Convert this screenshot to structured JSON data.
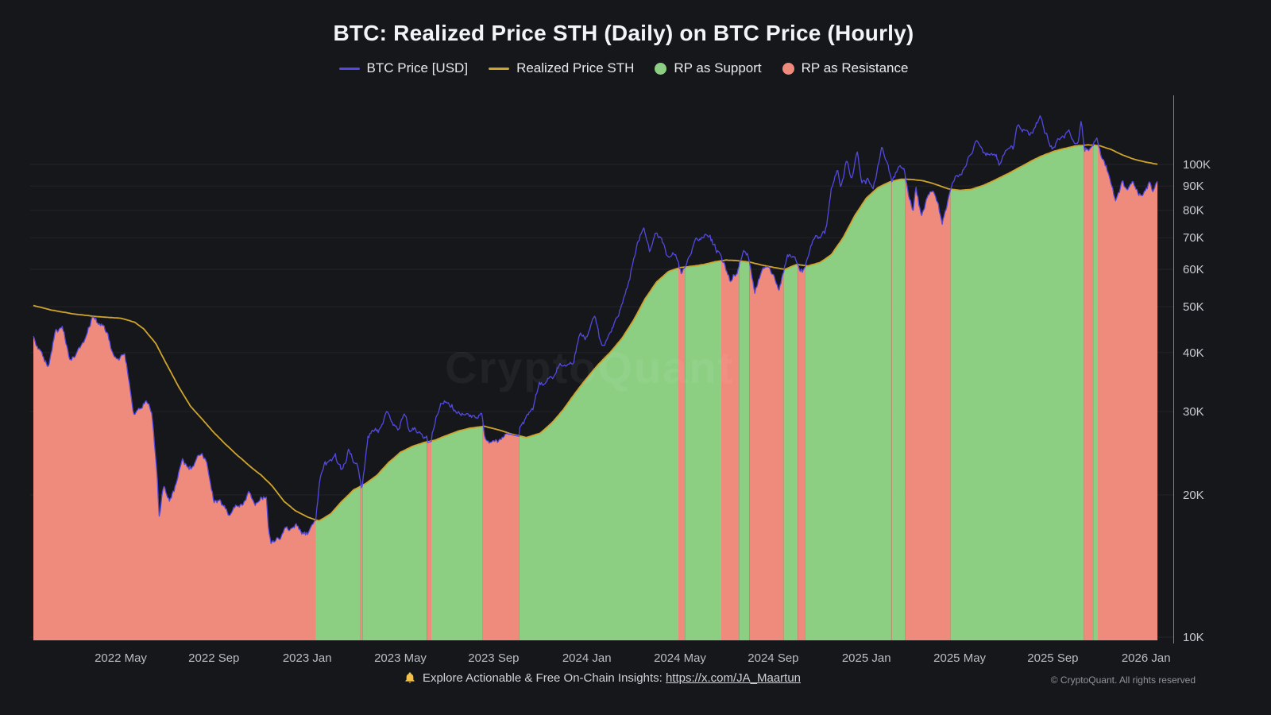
{
  "title": "BTC: Realized Price STH (Daily) on BTC Price (Hourly)",
  "legend": [
    {
      "label": "BTC Price [USD]",
      "swatch": "line",
      "color": "#5349e0"
    },
    {
      "label": "Realized Price STH",
      "swatch": "line",
      "color": "#cfa42d"
    },
    {
      "label": "RP as Support",
      "swatch": "dot",
      "color": "#8ccf83"
    },
    {
      "label": "RP as Resistance",
      "swatch": "dot",
      "color": "#ef8b7c"
    }
  ],
  "watermark": "CryptoQuant",
  "footer": {
    "icon": "bell-icon",
    "text": "Explore Actionable & Free On-Chain Insights:",
    "link_text": "https://x.com/JA_Maartun",
    "copyright": "© CryptoQuant. All rights reserved"
  },
  "chart_data": {
    "type": "area",
    "title": "BTC: Realized Price STH (Daily) on BTC Price (Hourly)",
    "x_axis": {
      "epoch": "months since 2022-01-01",
      "tick_months": [
        4,
        8,
        12,
        16,
        20,
        24,
        28,
        32,
        36,
        40,
        44,
        48
      ],
      "tick_labels": [
        "2022 May",
        "2022 Sep",
        "2023 Jan",
        "2023 May",
        "2023 Sep",
        "2024 Jan",
        "2024 May",
        "2024 Sep",
        "2025 Jan",
        "2025 May",
        "2025 Sep",
        "2026 Jan"
      ]
    },
    "y_axis": {
      "scale": "log",
      "unit": "thousand USD",
      "tick_values": [
        10,
        20,
        30,
        40,
        50,
        60,
        70,
        80,
        90,
        100
      ],
      "tick_labels": [
        "10K",
        "20K",
        "30K",
        "40K",
        "50K",
        "60K",
        "70K",
        "80K",
        "90K",
        "100K"
      ]
    },
    "colors": {
      "support": "#8ccf83",
      "resistance": "#ef8b7c",
      "grid": "rgba(255,255,255,0.06)",
      "axis": "#7d828b"
    },
    "bands_rule": "green (RP as Support) where BTC price is above Realized Price STH; red (RP as Resistance) where BTC price is below Realized Price STH; band fills from chart floor up to the lower of the two series",
    "series": [
      {
        "name": "BTC Price [USD]",
        "color": "#5349e0",
        "points": [
          [
            0.25,
            43.5
          ],
          [
            0.6,
            39.2
          ],
          [
            0.9,
            36.9
          ],
          [
            1.2,
            43.3
          ],
          [
            1.5,
            44.1
          ],
          [
            1.8,
            38.6
          ],
          [
            2.1,
            39.4
          ],
          [
            2.4,
            42.6
          ],
          [
            2.75,
            47.6
          ],
          [
            3.0,
            46.8
          ],
          [
            3.3,
            45.4
          ],
          [
            3.6,
            40.1
          ],
          [
            3.9,
            38.6
          ],
          [
            4.15,
            39.6
          ],
          [
            4.35,
            35.2
          ],
          [
            4.55,
            29.3
          ],
          [
            4.8,
            29.9
          ],
          [
            5.1,
            31.6
          ],
          [
            5.35,
            29.6
          ],
          [
            5.55,
            22.6
          ],
          [
            5.65,
            18.0
          ],
          [
            5.85,
            20.6
          ],
          [
            6.1,
            19.2
          ],
          [
            6.4,
            21.2
          ],
          [
            6.65,
            23.3
          ],
          [
            6.9,
            22.5
          ],
          [
            7.2,
            23.1
          ],
          [
            7.45,
            24.4
          ],
          [
            7.7,
            23.8
          ],
          [
            8.0,
            20.1
          ],
          [
            8.3,
            19.9
          ],
          [
            8.6,
            18.8
          ],
          [
            8.9,
            19.3
          ],
          [
            9.2,
            19.6
          ],
          [
            9.5,
            20.3
          ],
          [
            9.8,
            19.5
          ],
          [
            10.05,
            20.6
          ],
          [
            10.25,
            20.9
          ],
          [
            10.35,
            17.3
          ],
          [
            10.45,
            16.0
          ],
          [
            10.65,
            16.6
          ],
          [
            10.85,
            16.3
          ],
          [
            11.1,
            17.1
          ],
          [
            11.35,
            16.9
          ],
          [
            11.6,
            16.8
          ],
          [
            11.85,
            16.6
          ],
          [
            12.1,
            16.8
          ],
          [
            12.35,
            17.2
          ],
          [
            12.55,
            21.0
          ],
          [
            12.75,
            22.8
          ],
          [
            12.95,
            23.1
          ],
          [
            13.2,
            23.7
          ],
          [
            13.5,
            21.9
          ],
          [
            13.75,
            24.6
          ],
          [
            14.0,
            23.3
          ],
          [
            14.2,
            22.4
          ],
          [
            14.35,
            20.3
          ],
          [
            14.6,
            26.5
          ],
          [
            14.9,
            28.1
          ],
          [
            15.1,
            27.9
          ],
          [
            15.4,
            30.3
          ],
          [
            15.6,
            29.4
          ],
          [
            15.9,
            27.7
          ],
          [
            16.15,
            29.5
          ],
          [
            16.4,
            26.9
          ],
          [
            16.65,
            27.3
          ],
          [
            16.9,
            26.6
          ],
          [
            17.15,
            26.0
          ],
          [
            17.3,
            25.2
          ],
          [
            17.55,
            28.6
          ],
          [
            17.8,
            30.6
          ],
          [
            18.1,
            30.4
          ],
          [
            18.4,
            29.9
          ],
          [
            18.7,
            29.3
          ],
          [
            19.0,
            29.2
          ],
          [
            19.25,
            29.6
          ],
          [
            19.5,
            28.9
          ],
          [
            19.62,
            26.3
          ],
          [
            19.85,
            26.1
          ],
          [
            20.15,
            25.9
          ],
          [
            20.45,
            26.3
          ],
          [
            20.75,
            26.9
          ],
          [
            21.0,
            26.3
          ],
          [
            21.35,
            27.7
          ],
          [
            21.7,
            30.1
          ],
          [
            21.95,
            34.3
          ],
          [
            22.2,
            34.4
          ],
          [
            22.5,
            35.2
          ],
          [
            22.85,
            37.4
          ],
          [
            23.15,
            37.5
          ],
          [
            23.45,
            38.1
          ],
          [
            23.7,
            43.8
          ],
          [
            24.0,
            42.7
          ],
          [
            24.35,
            46.6
          ],
          [
            24.6,
            40.1
          ],
          [
            24.8,
            39.8
          ],
          [
            25.1,
            43.0
          ],
          [
            25.45,
            48.6
          ],
          [
            25.75,
            54.5
          ],
          [
            26.0,
            62.0
          ],
          [
            26.2,
            67.6
          ],
          [
            26.45,
            72.9
          ],
          [
            26.7,
            64.3
          ],
          [
            26.95,
            69.9
          ],
          [
            27.2,
            69.3
          ],
          [
            27.5,
            64.1
          ],
          [
            27.8,
            63.6
          ],
          [
            28.05,
            58.5
          ],
          [
            28.35,
            61.9
          ],
          [
            28.7,
            67.3
          ],
          [
            29.0,
            68.1
          ],
          [
            29.2,
            70.9
          ],
          [
            29.55,
            65.6
          ],
          [
            29.9,
            61.3
          ],
          [
            30.15,
            55.6
          ],
          [
            30.45,
            58.6
          ],
          [
            30.7,
            67.1
          ],
          [
            30.95,
            64.9
          ],
          [
            31.2,
            53.6
          ],
          [
            31.5,
            59.9
          ],
          [
            31.8,
            60.9
          ],
          [
            32.05,
            57.9
          ],
          [
            32.25,
            53.6
          ],
          [
            32.6,
            63.3
          ],
          [
            32.9,
            64.1
          ],
          [
            33.1,
            61.0
          ],
          [
            33.35,
            59.9
          ],
          [
            33.7,
            68.4
          ],
          [
            34.05,
            68.6
          ],
          [
            34.3,
            72.6
          ],
          [
            34.5,
            89.1
          ],
          [
            34.75,
            98.4
          ],
          [
            34.9,
            91.6
          ],
          [
            35.15,
            103.6
          ],
          [
            35.35,
            95.1
          ],
          [
            35.6,
            107.6
          ],
          [
            35.8,
            93.1
          ],
          [
            36.05,
            94.6
          ],
          [
            36.3,
            91.9
          ],
          [
            36.65,
            108.6
          ],
          [
            36.9,
            101.6
          ],
          [
            37.08,
            91.5
          ],
          [
            37.35,
            97.9
          ],
          [
            37.6,
            96.1
          ],
          [
            37.85,
            84.6
          ],
          [
            38.0,
            79.1
          ],
          [
            38.12,
            91.5
          ],
          [
            38.35,
            78.6
          ],
          [
            38.6,
            84.1
          ],
          [
            38.85,
            87.4
          ],
          [
            39.05,
            82.1
          ],
          [
            39.25,
            75.6
          ],
          [
            39.55,
            85.6
          ],
          [
            39.8,
            93.9
          ],
          [
            40.05,
            95.1
          ],
          [
            40.3,
            102.6
          ],
          [
            40.72,
            111.4
          ],
          [
            41.0,
            104.6
          ],
          [
            41.25,
            105.4
          ],
          [
            41.55,
            103.9
          ],
          [
            41.75,
            99.6
          ],
          [
            42.05,
            107.3
          ],
          [
            42.3,
            109.1
          ],
          [
            42.47,
            121.6
          ],
          [
            42.75,
            117.4
          ],
          [
            43.05,
            113.4
          ],
          [
            43.25,
            114.6
          ],
          [
            43.45,
            123.9
          ],
          [
            43.75,
            112.9
          ],
          [
            44.05,
            108.9
          ],
          [
            44.35,
            111.6
          ],
          [
            44.65,
            117.1
          ],
          [
            44.9,
            112.4
          ],
          [
            45.1,
            115.6
          ],
          [
            45.22,
            125.9
          ],
          [
            45.35,
            108.1
          ],
          [
            45.55,
            107.1
          ],
          [
            45.9,
            111.9
          ],
          [
            46.1,
            101.1
          ],
          [
            46.4,
            94.6
          ],
          [
            46.7,
            82.6
          ],
          [
            46.95,
            91.1
          ],
          [
            47.2,
            88.1
          ],
          [
            47.45,
            93.1
          ],
          [
            47.7,
            87.6
          ],
          [
            47.95,
            89.6
          ],
          [
            48.15,
            92.1
          ],
          [
            48.3,
            88.6
          ],
          [
            48.5,
            93.6
          ]
        ]
      },
      {
        "name": "Realized Price STH",
        "color": "#cfa42d",
        "points": [
          [
            0.25,
            50.3
          ],
          [
            1.0,
            49.2
          ],
          [
            2.0,
            48.2
          ],
          [
            3.0,
            47.6
          ],
          [
            4.0,
            47.2
          ],
          [
            4.6,
            46.3
          ],
          [
            5.0,
            44.8
          ],
          [
            5.5,
            41.8
          ],
          [
            6.0,
            37.5
          ],
          [
            6.5,
            33.8
          ],
          [
            7.0,
            30.8
          ],
          [
            7.5,
            28.9
          ],
          [
            8.0,
            27.1
          ],
          [
            8.5,
            25.6
          ],
          [
            9.0,
            24.3
          ],
          [
            9.5,
            23.1
          ],
          [
            10.0,
            22.1
          ],
          [
            10.5,
            20.9
          ],
          [
            11.0,
            19.4
          ],
          [
            11.5,
            18.5
          ],
          [
            12.0,
            17.95
          ],
          [
            12.5,
            17.6
          ],
          [
            13.0,
            18.2
          ],
          [
            13.5,
            19.4
          ],
          [
            14.0,
            20.5
          ],
          [
            14.5,
            21.1
          ],
          [
            15.0,
            22.0
          ],
          [
            15.5,
            23.4
          ],
          [
            16.0,
            24.6
          ],
          [
            16.5,
            25.3
          ],
          [
            17.0,
            25.8
          ],
          [
            17.5,
            26.1
          ],
          [
            18.0,
            26.7
          ],
          [
            18.5,
            27.3
          ],
          [
            19.0,
            27.7
          ],
          [
            19.6,
            27.95
          ],
          [
            20.2,
            27.5
          ],
          [
            20.8,
            26.9
          ],
          [
            21.4,
            26.45
          ],
          [
            22.0,
            27.0
          ],
          [
            22.5,
            28.4
          ],
          [
            23.0,
            30.3
          ],
          [
            23.5,
            32.8
          ],
          [
            24.0,
            35.3
          ],
          [
            24.5,
            37.8
          ],
          [
            25.0,
            40.0
          ],
          [
            25.5,
            42.8
          ],
          [
            26.0,
            46.8
          ],
          [
            26.5,
            52.0
          ],
          [
            27.0,
            56.5
          ],
          [
            27.5,
            59.3
          ],
          [
            28.0,
            60.5
          ],
          [
            28.5,
            60.9
          ],
          [
            29.0,
            61.4
          ],
          [
            29.5,
            62.3
          ],
          [
            30.0,
            62.8
          ],
          [
            30.5,
            62.5
          ],
          [
            31.0,
            62.1
          ],
          [
            31.5,
            61.3
          ],
          [
            32.0,
            60.6
          ],
          [
            32.5,
            60.0
          ],
          [
            33.0,
            61.4
          ],
          [
            33.5,
            61.0
          ],
          [
            34.0,
            62.0
          ],
          [
            34.5,
            64.5
          ],
          [
            35.0,
            70.0
          ],
          [
            35.5,
            78.0
          ],
          [
            36.0,
            85.0
          ],
          [
            36.5,
            89.5
          ],
          [
            37.0,
            92.0
          ],
          [
            37.5,
            93.2
          ],
          [
            38.0,
            93.0
          ],
          [
            38.5,
            92.2
          ],
          [
            39.0,
            90.6
          ],
          [
            39.5,
            88.8
          ],
          [
            40.0,
            88.2
          ],
          [
            40.5,
            88.6
          ],
          [
            41.0,
            90.2
          ],
          [
            41.5,
            92.6
          ],
          [
            42.0,
            95.2
          ],
          [
            42.5,
            98.2
          ],
          [
            43.0,
            101.4
          ],
          [
            43.5,
            104.2
          ],
          [
            44.0,
            106.4
          ],
          [
            44.5,
            108.2
          ],
          [
            45.0,
            109.6
          ],
          [
            45.5,
            110.1
          ],
          [
            46.0,
            109.6
          ],
          [
            46.5,
            107.6
          ],
          [
            47.0,
            104.8
          ],
          [
            47.5,
            102.6
          ],
          [
            48.0,
            101.2
          ],
          [
            48.5,
            100.1
          ]
        ]
      }
    ]
  }
}
